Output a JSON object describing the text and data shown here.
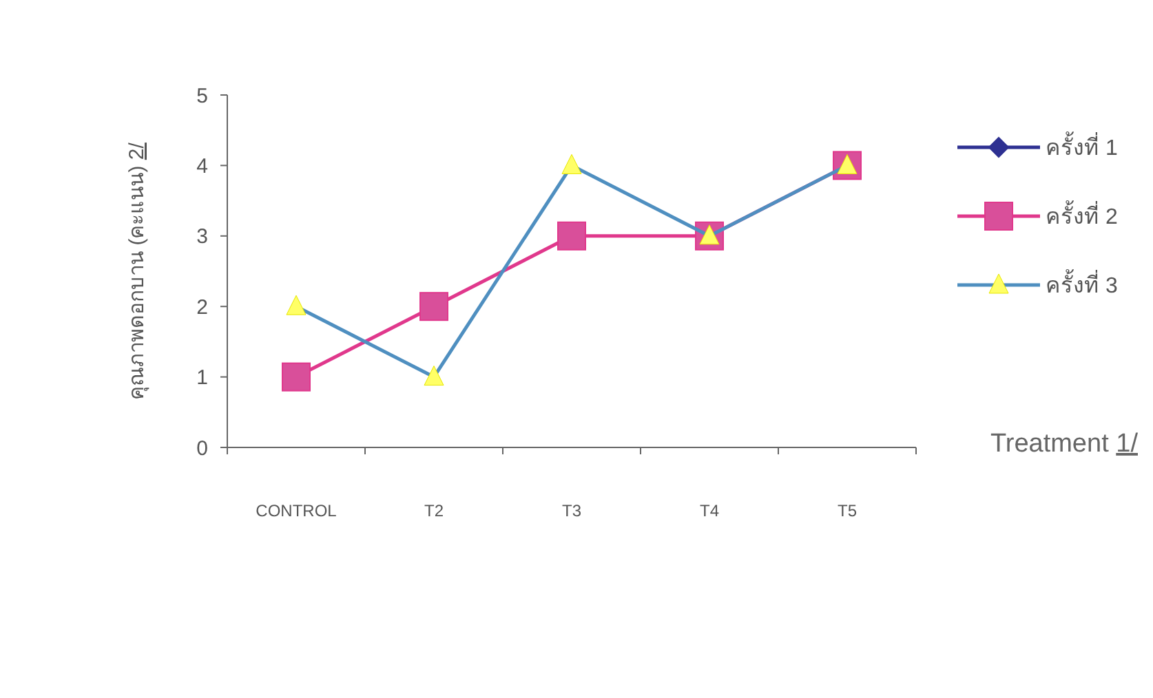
{
  "chart_data": {
    "type": "line",
    "xlabel": "Treatment 1/",
    "ylabel": "คุณภาพดอกบาน (คะแนน) 2/",
    "categories": [
      "CONTROL",
      "T2",
      "T3",
      "T4",
      "T5"
    ],
    "series": [
      {
        "name": "ครั้งที่ 1",
        "color": "#2e3192",
        "marker": "diamond",
        "values": [
          null,
          null,
          null,
          null,
          null
        ]
      },
      {
        "name": "ครั้งที่ 2",
        "color": "#e0388c",
        "marker": "square",
        "values": [
          1,
          2,
          3,
          3,
          4
        ]
      },
      {
        "name": "ครั้งที่ 3",
        "color": "#4f8fc0",
        "marker": "triangle",
        "values": [
          2,
          1,
          4,
          3,
          4
        ]
      }
    ],
    "ylim": [
      0,
      5
    ],
    "yticks": [
      0,
      1,
      2,
      3,
      4,
      5
    ],
    "legend": "right",
    "grid": false
  }
}
